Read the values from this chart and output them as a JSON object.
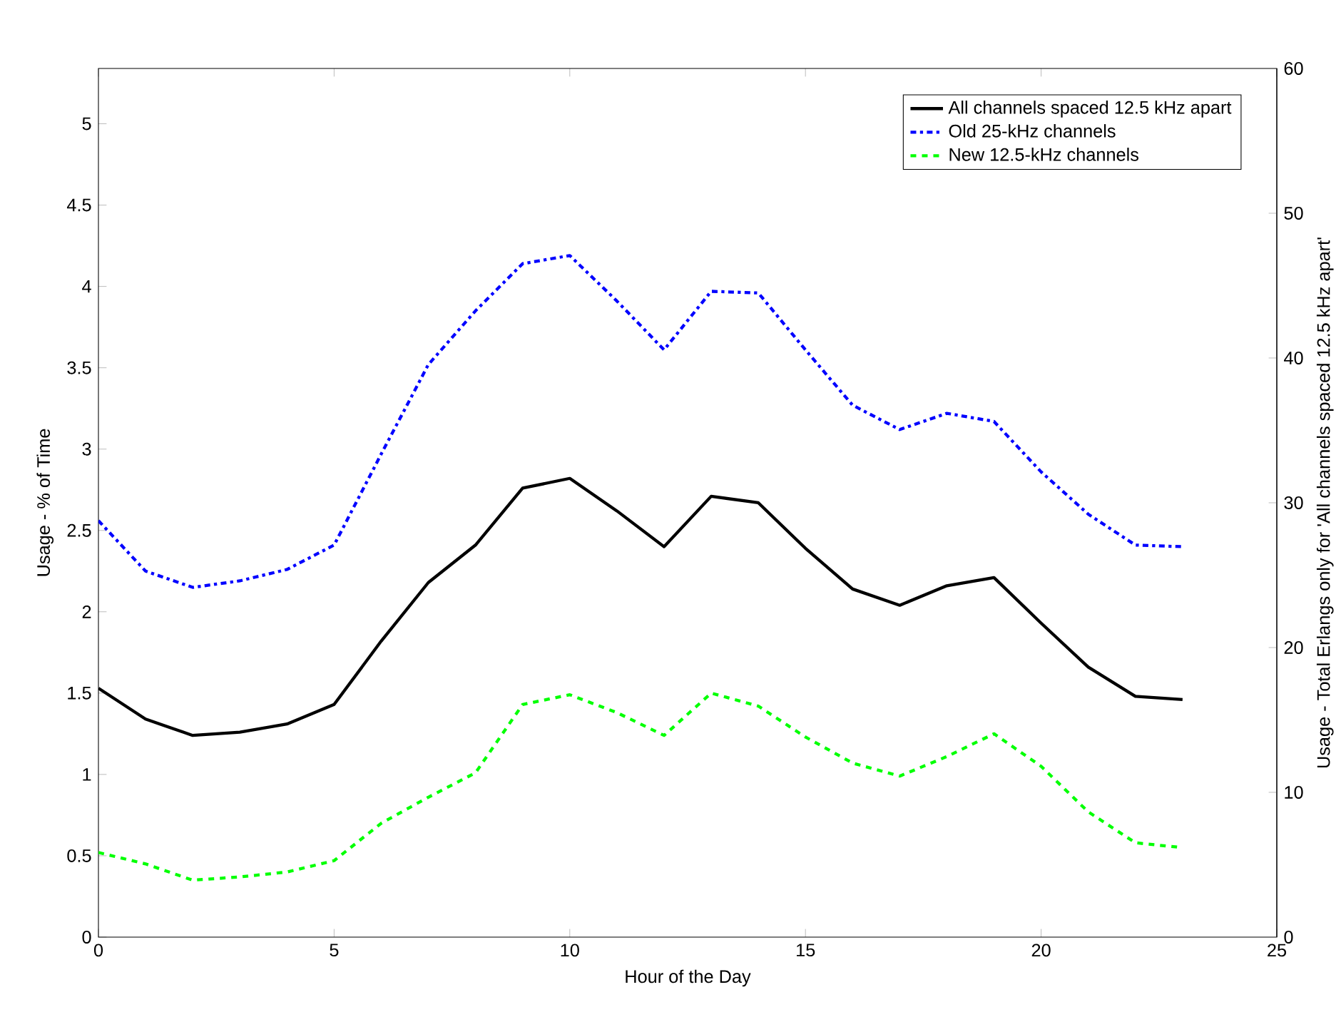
{
  "chart_data": {
    "type": "line",
    "xlabel": "Hour of the Day",
    "ylabel": "Usage - % of Time",
    "y2label": "Usage - Total Erlangs only for 'All channels spaced 12.5 kHz apart'",
    "x": [
      0,
      1,
      2,
      3,
      4,
      5,
      6,
      7,
      8,
      9,
      10,
      11,
      12,
      13,
      14,
      15,
      16,
      17,
      18,
      19,
      20,
      21,
      22,
      23
    ],
    "series": [
      {
        "name": "All channels spaced 12.5 kHz apart",
        "color": "#000000",
        "line_style": "solid",
        "values": [
          1.53,
          1.34,
          1.24,
          1.26,
          1.31,
          1.43,
          1.82,
          2.18,
          2.41,
          2.76,
          2.82,
          2.62,
          2.4,
          2.71,
          2.67,
          2.39,
          2.14,
          2.04,
          2.16,
          2.21,
          1.93,
          1.66,
          1.48,
          1.46
        ]
      },
      {
        "name": "Old 25-kHz channels",
        "color": "#0000ff",
        "line_style": "dashdot",
        "values": [
          2.56,
          2.25,
          2.15,
          2.19,
          2.26,
          2.41,
          2.97,
          3.52,
          3.85,
          4.14,
          4.19,
          3.91,
          3.61,
          3.97,
          3.96,
          3.61,
          3.27,
          3.12,
          3.22,
          3.17,
          2.86,
          2.6,
          2.41,
          2.4
        ]
      },
      {
        "name": "New 12.5-kHz channels",
        "color": "#00ff00",
        "line_style": "dashed",
        "values": [
          0.52,
          0.45,
          0.35,
          0.37,
          0.4,
          0.47,
          0.7,
          0.86,
          1.01,
          1.43,
          1.49,
          1.38,
          1.24,
          1.5,
          1.42,
          1.23,
          1.07,
          0.99,
          1.11,
          1.25,
          1.05,
          0.77,
          0.58,
          0.55
        ]
      }
    ],
    "xlim": [
      0,
      25
    ],
    "xticks": [
      0,
      5,
      10,
      15,
      20,
      25
    ],
    "ylim": [
      0,
      5.34
    ],
    "yticks": [
      0,
      0.5,
      1,
      1.5,
      2,
      2.5,
      3,
      3.5,
      4,
      4.5,
      5
    ],
    "y2lim": [
      0,
      60
    ],
    "y2ticks": [
      0,
      10,
      20,
      30,
      40,
      50,
      60
    ],
    "legend": "top right"
  }
}
